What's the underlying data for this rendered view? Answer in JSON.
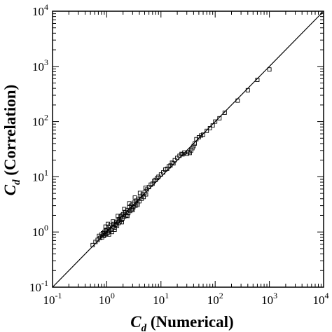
{
  "chart_data": {
    "type": "scatter",
    "xscale": "log",
    "yscale": "log",
    "xlim": [
      0.1,
      10000
    ],
    "ylim": [
      0.1,
      10000
    ],
    "xlabel": {
      "main": "C",
      "sub": "d",
      "rest": " (Numerical)"
    },
    "ylabel": {
      "main": "C",
      "sub": "d",
      "rest": " (Correlation)"
    },
    "x_tick_labels": [
      {
        "base": "10",
        "exp": "-1",
        "value": 0.1
      },
      {
        "base": "10",
        "exp": "0",
        "value": 1
      },
      {
        "base": "10",
        "exp": "1",
        "value": 10
      },
      {
        "base": "10",
        "exp": "2",
        "value": 100
      },
      {
        "base": "10",
        "exp": "3",
        "value": 1000
      },
      {
        "base": "10",
        "exp": "4",
        "value": 10000
      }
    ],
    "y_tick_labels": [
      {
        "base": "10",
        "exp": "-1",
        "value": 0.1
      },
      {
        "base": "10",
        "exp": "0",
        "value": 1
      },
      {
        "base": "10",
        "exp": "1",
        "value": 10
      },
      {
        "base": "10",
        "exp": "2",
        "value": 100
      },
      {
        "base": "10",
        "exp": "3",
        "value": 1000
      },
      {
        "base": "10",
        "exp": "4",
        "value": 10000
      }
    ],
    "grid": false,
    "marker": "open-square",
    "reference_line": {
      "from": [
        0.1,
        0.1
      ],
      "to": [
        10000,
        10000
      ],
      "style": "solid"
    },
    "points": [
      [
        0.55,
        0.58
      ],
      [
        0.62,
        0.66
      ],
      [
        0.68,
        0.72
      ],
      [
        0.72,
        0.85
      ],
      [
        0.75,
        0.78
      ],
      [
        0.8,
        0.9
      ],
      [
        0.82,
        0.8
      ],
      [
        0.85,
        0.95
      ],
      [
        0.88,
        0.85
      ],
      [
        0.9,
        1.0
      ],
      [
        0.92,
        0.88
      ],
      [
        0.95,
        1.05
      ],
      [
        0.98,
        0.92
      ],
      [
        1.0,
        1.1
      ],
      [
        1.05,
        0.98
      ],
      [
        1.08,
        1.2
      ],
      [
        1.1,
        0.9
      ],
      [
        1.12,
        1.05
      ],
      [
        1.15,
        1.3
      ],
      [
        1.2,
        1.1
      ],
      [
        1.25,
        1.0
      ],
      [
        1.3,
        1.25
      ],
      [
        1.35,
        1.4
      ],
      [
        1.4,
        1.2
      ],
      [
        1.45,
        1.35
      ],
      [
        1.5,
        1.5
      ],
      [
        1.55,
        1.3
      ],
      [
        1.6,
        1.6
      ],
      [
        1.65,
        1.45
      ],
      [
        1.7,
        1.7
      ],
      [
        1.75,
        1.55
      ],
      [
        1.8,
        1.9
      ],
      [
        1.85,
        1.65
      ],
      [
        1.9,
        2.0
      ],
      [
        1.95,
        1.75
      ],
      [
        2.0,
        2.1
      ],
      [
        2.1,
        1.9
      ],
      [
        2.2,
        2.3
      ],
      [
        2.3,
        2.0
      ],
      [
        2.4,
        2.5
      ],
      [
        2.5,
        2.2
      ],
      [
        2.6,
        2.8
      ],
      [
        2.7,
        2.4
      ],
      [
        2.8,
        3.0
      ],
      [
        2.9,
        2.6
      ],
      [
        3.0,
        3.2
      ],
      [
        3.1,
        2.8
      ],
      [
        3.2,
        3.4
      ],
      [
        3.4,
        3.0
      ],
      [
        3.5,
        3.7
      ],
      [
        3.7,
        3.3
      ],
      [
        3.8,
        4.0
      ],
      [
        4.0,
        3.6
      ],
      [
        4.2,
        4.4
      ],
      [
        4.4,
        4.0
      ],
      [
        4.6,
        4.8
      ],
      [
        4.8,
        4.3
      ],
      [
        5.0,
        5.2
      ],
      [
        5.3,
        4.8
      ],
      [
        5.5,
        5.9
      ],
      [
        0.95,
        1.25
      ],
      [
        1.05,
        1.4
      ],
      [
        1.3,
        1.55
      ],
      [
        1.6,
        1.95
      ],
      [
        2.1,
        2.6
      ],
      [
        2.6,
        3.3
      ],
      [
        3.3,
        4.2
      ],
      [
        4.1,
        5.1
      ],
      [
        5.2,
        6.3
      ],
      [
        1.4,
        1.1
      ],
      [
        1.9,
        1.5
      ],
      [
        2.4,
        1.95
      ],
      [
        3.0,
        2.5
      ],
      [
        3.7,
        3.1
      ],
      [
        6.0,
        6.5
      ],
      [
        6.5,
        7.2
      ],
      [
        7.0,
        7.5
      ],
      [
        7.5,
        8.4
      ],
      [
        8.0,
        8.8
      ],
      [
        8.5,
        9.5
      ],
      [
        9.0,
        10.0
      ],
      [
        10.0,
        11.0
      ],
      [
        11.0,
        12.0
      ],
      [
        12.0,
        13.5
      ],
      [
        13.0,
        14.0
      ],
      [
        14.0,
        15.5
      ],
      [
        15.0,
        16.0
      ],
      [
        16.0,
        18.0
      ],
      [
        17.0,
        17.5
      ],
      [
        18.0,
        20.0
      ],
      [
        20.0,
        22.0
      ],
      [
        22.0,
        24.0
      ],
      [
        24.0,
        26.0
      ],
      [
        25.0,
        25.5
      ],
      [
        27.0,
        27.5
      ],
      [
        30.0,
        26.0
      ],
      [
        32.0,
        28.0
      ],
      [
        34.0,
        27.0
      ],
      [
        36.0,
        30.0
      ],
      [
        38.0,
        33.0
      ],
      [
        40.0,
        36.0
      ],
      [
        42.0,
        40.0
      ],
      [
        45.0,
        48.0
      ],
      [
        50.0,
        52.0
      ],
      [
        55.0,
        56.0
      ],
      [
        60.0,
        58.0
      ],
      [
        70.0,
        68.0
      ],
      [
        80.0,
        76.0
      ],
      [
        90.0,
        85.0
      ],
      [
        100.0,
        100.0
      ],
      [
        120.0,
        115.0
      ],
      [
        150.0,
        145.0
      ],
      [
        260.0,
        240.0
      ],
      [
        400.0,
        370.0
      ],
      [
        600.0,
        570.0
      ],
      [
        1000.0,
        880.0
      ]
    ]
  }
}
